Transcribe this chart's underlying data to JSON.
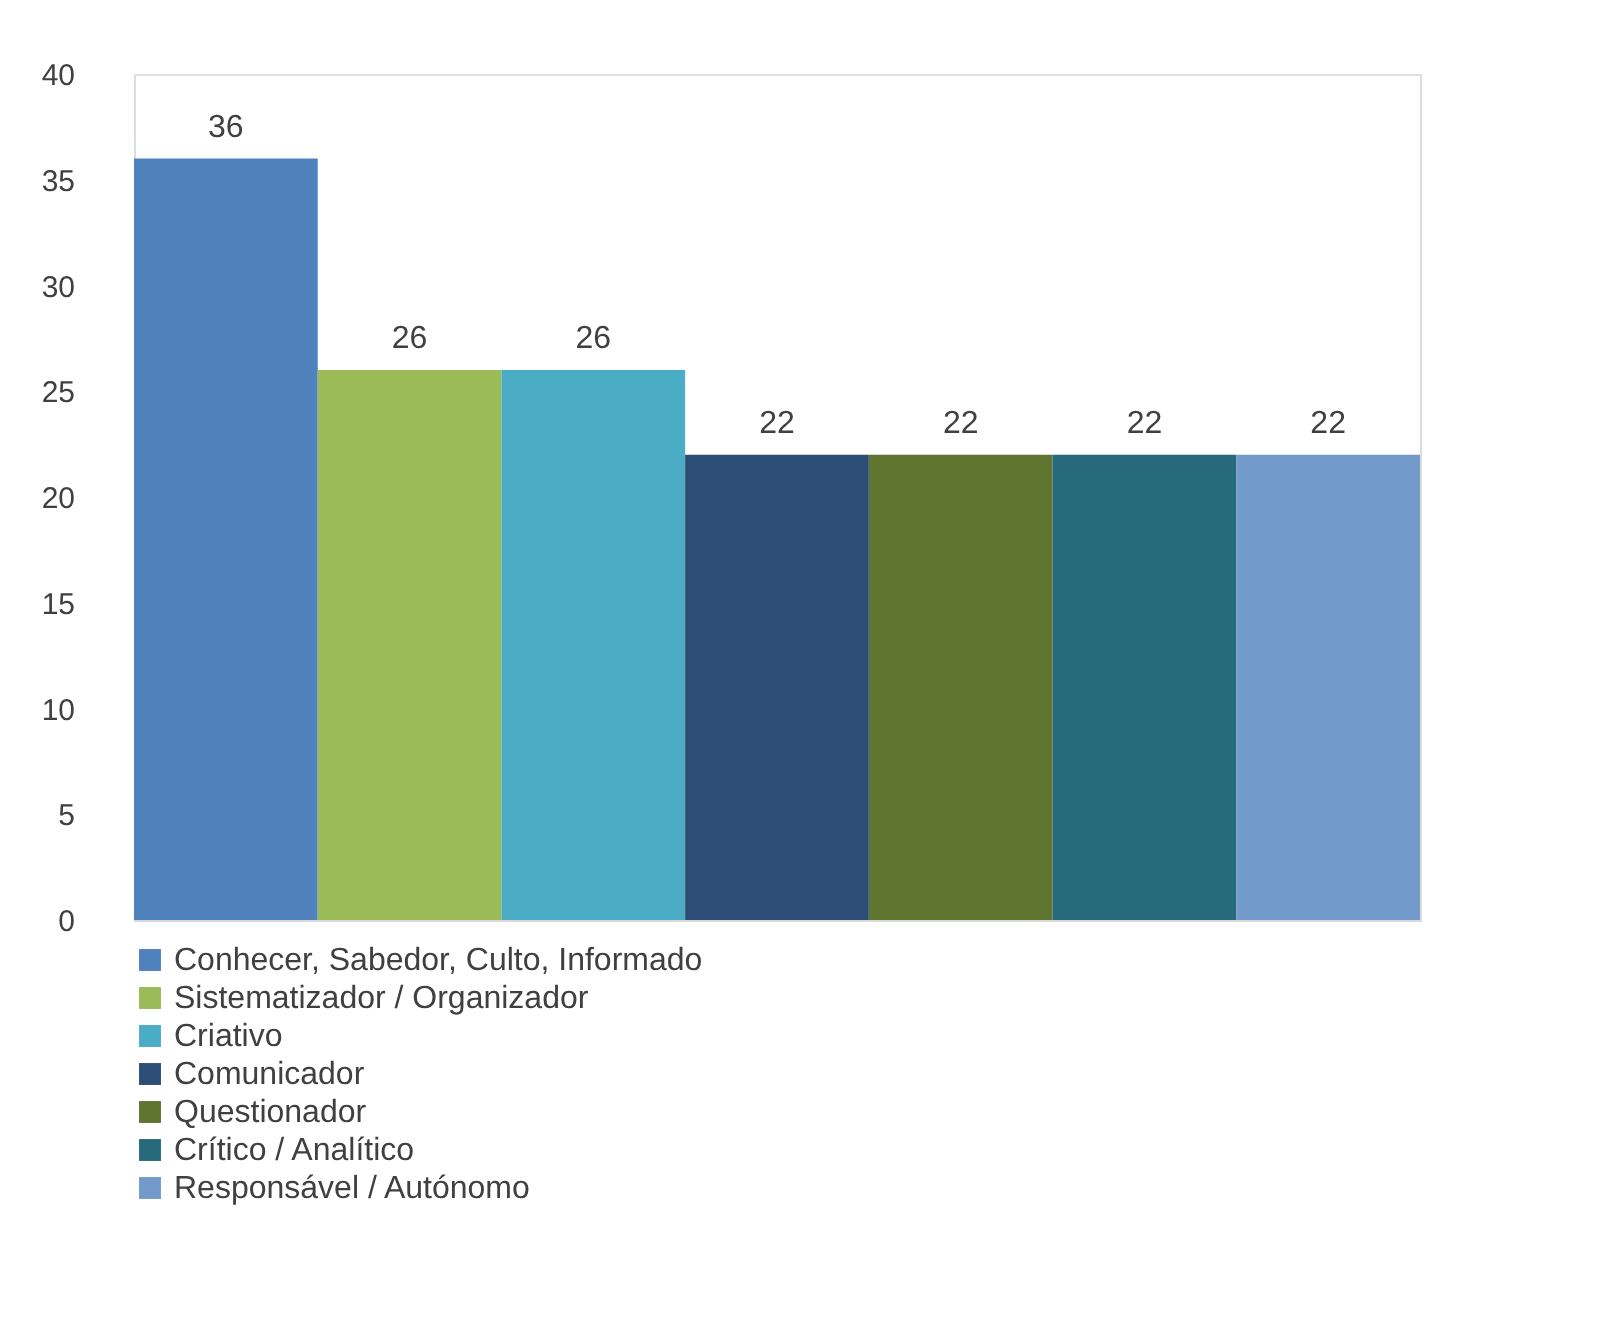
{
  "chart_data": {
    "type": "bar",
    "categories": [
      null
    ],
    "series": [
      {
        "name": "Conhecer, Sabedor, Culto, Informado",
        "color": "#4f81bd",
        "values": [
          36
        ]
      },
      {
        "name": "Sistematizador / Organizador",
        "color": "#9bbb59",
        "values": [
          26
        ]
      },
      {
        "name": "Criativo",
        "color": "#4bacc6",
        "values": [
          26
        ]
      },
      {
        "name": "Comunicador",
        "color": "#2c4d75",
        "values": [
          22
        ]
      },
      {
        "name": "Questionador",
        "color": "#5f7530",
        "values": [
          22
        ]
      },
      {
        "name": "Crítico / Analítico",
        "color": "#276a7c",
        "values": [
          22
        ]
      },
      {
        "name": "Responsável / Autónomo",
        "color": "#729aca",
        "values": [
          22
        ]
      }
    ],
    "ylim": [
      0,
      40
    ],
    "yticks": [
      0,
      5,
      10,
      15,
      20,
      25,
      30,
      35,
      40
    ],
    "data_labels": true,
    "grid": false,
    "legend": "bottom",
    "tick_labels": "y"
  }
}
